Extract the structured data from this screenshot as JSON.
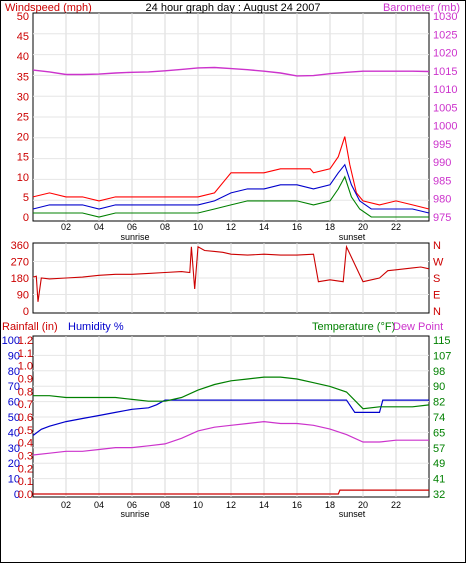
{
  "chart_data": [
    {
      "type": "line",
      "title": "24 hour graph day : August 24 2007",
      "left_axis_label": "Windspeed (mph)",
      "right_axis_label": "Barometer (mb)",
      "left_ylim": [
        0,
        50
      ],
      "left_ticks": [
        "0",
        "5",
        "10",
        "15",
        "20",
        "25",
        "30",
        "35",
        "40",
        "45",
        "50"
      ],
      "right_ylim": [
        975,
        1030
      ],
      "right_ticks": [
        "975",
        "980",
        "985",
        "990",
        "995",
        "1000",
        "1005",
        "1010",
        "1015",
        "1020",
        "1025",
        "1030"
      ],
      "x_ticks": [
        "02",
        "04",
        "06",
        "08",
        "10",
        "12",
        "14",
        "16",
        "18",
        "20",
        "22"
      ],
      "x_annotations": [
        "sunrise",
        "sunset"
      ],
      "colors": {
        "gust": "#ff0000",
        "average": "#0000cc",
        "lowest": "#008000",
        "barometer": "#cc33cc"
      },
      "series": [
        {
          "key": "barometer",
          "axis": "right",
          "x": [
            0,
            1,
            2,
            3,
            4,
            5,
            6,
            7,
            8,
            9,
            10,
            11,
            12,
            13,
            14,
            15,
            16,
            17,
            18,
            19,
            20,
            21,
            22,
            23,
            24
          ],
          "y": [
            1015.2,
            1014.7,
            1014.0,
            1014.0,
            1014.1,
            1014.4,
            1014.6,
            1014.7,
            1015.0,
            1015.4,
            1015.8,
            1015.9,
            1015.6,
            1015.3,
            1014.9,
            1014.4,
            1013.6,
            1013.7,
            1014.2,
            1014.6,
            1014.9,
            1014.9,
            1014.9,
            1014.9,
            1014.8
          ]
        },
        {
          "key": "gust",
          "axis": "left",
          "x": [
            0,
            1,
            2,
            3,
            4,
            5,
            6,
            7,
            8,
            9,
            10,
            11,
            11.6,
            12,
            13,
            14,
            15,
            16,
            16.8,
            17,
            18,
            18.5,
            18.9,
            19.2,
            19.6,
            20,
            21,
            22,
            23,
            24
          ],
          "y": [
            5,
            6,
            5,
            5,
            4,
            5,
            5,
            5,
            5,
            5,
            5,
            6,
            9,
            11,
            11,
            11,
            12,
            12,
            12,
            11,
            12,
            15,
            20,
            13,
            6,
            4,
            3,
            4,
            3,
            2
          ]
        },
        {
          "key": "average",
          "axis": "left",
          "x": [
            0,
            1,
            2,
            3,
            4,
            5,
            6,
            7,
            8,
            9,
            10,
            11,
            12,
            13,
            14,
            15,
            16,
            17,
            18,
            18.5,
            18.9,
            19.3,
            19.8,
            20.5,
            21,
            22,
            23,
            24
          ],
          "y": [
            2,
            3,
            3,
            3,
            2,
            3,
            3,
            3,
            3,
            3,
            3,
            4,
            6,
            7,
            7,
            8,
            8,
            7,
            8,
            11,
            13,
            8,
            4,
            2,
            2,
            2,
            2,
            1
          ]
        },
        {
          "key": "lowest",
          "axis": "left",
          "x": [
            0,
            1,
            2,
            3,
            4,
            5,
            6,
            7,
            8,
            9,
            10,
            11,
            12,
            13,
            14,
            15,
            16,
            17,
            18,
            18.5,
            18.9,
            19.3,
            19.8,
            20.5,
            21,
            22,
            23,
            24
          ],
          "y": [
            1,
            1,
            1,
            1,
            0,
            1,
            1,
            1,
            1,
            1,
            1,
            2,
            3,
            4,
            4,
            4,
            4,
            3,
            4,
            7,
            10,
            5,
            2,
            0,
            0,
            0,
            0,
            0
          ]
        }
      ]
    },
    {
      "type": "line",
      "left_ylim": [
        0,
        360
      ],
      "left_ticks": [
        "0",
        "90",
        "180",
        "270",
        "360"
      ],
      "right_ticks": [
        "N",
        "E",
        "S",
        "W",
        "N"
      ],
      "series": [
        {
          "key": "direction",
          "color": "#cc0000",
          "x": [
            0,
            0.2,
            0.3,
            0.5,
            1,
            2,
            3,
            4,
            5,
            6,
            7,
            8,
            9,
            9.5,
            9.6,
            9.8,
            10,
            10.4,
            11,
            11.5,
            12,
            13,
            14,
            15,
            16,
            17,
            17.3,
            18,
            18.8,
            19,
            20,
            21,
            21.5,
            22,
            23,
            23.5,
            24
          ],
          "y": [
            185,
            190,
            50,
            180,
            175,
            180,
            185,
            195,
            200,
            200,
            205,
            210,
            215,
            210,
            350,
            120,
            350,
            330,
            325,
            320,
            310,
            305,
            310,
            305,
            305,
            310,
            160,
            170,
            160,
            350,
            160,
            180,
            220,
            225,
            235,
            240,
            230
          ]
        }
      ]
    },
    {
      "type": "line",
      "labels": [
        "Rainfall (in)",
        "Humidity %",
        "Temperature (°F)",
        "Dew Point"
      ],
      "left_ticks_humidity": [
        "0",
        "10",
        "20",
        "30",
        "40",
        "50",
        "60",
        "70",
        "80",
        "90",
        "100"
      ],
      "left_ticks_rain": [
        "0.0",
        "0.1",
        "0.2",
        "0.3",
        "0.4",
        "0.5",
        "0.6",
        "0.7",
        "0.8",
        "0.9",
        "1.0",
        "1.1",
        "1.2"
      ],
      "right_ticks": [
        "32",
        "41",
        "49",
        "57",
        "65",
        "74",
        "82",
        "90",
        "98",
        "107",
        "115"
      ],
      "rain_ylim": [
        0,
        1.2
      ],
      "temp_ylim": [
        32,
        115
      ],
      "series": [
        {
          "key": "rainfall",
          "color": "#cc0000",
          "x": [
            0,
            18.5,
            18.6,
            24
          ],
          "y": [
            0.0,
            0.0,
            0.03,
            0.03
          ]
        },
        {
          "key": "humidity",
          "color": "#0000cc",
          "x": [
            0,
            0.5,
            1,
            2,
            3,
            4,
            5,
            6,
            7,
            7.5,
            8,
            9,
            10,
            11,
            12,
            13,
            14,
            15,
            16,
            17,
            18,
            19,
            19.5,
            20,
            20.5,
            21,
            21.2,
            22,
            23,
            24
          ],
          "y": [
            38,
            42,
            44,
            47,
            49,
            51,
            53,
            55,
            56,
            58,
            61,
            61,
            61,
            61,
            61,
            61,
            61,
            61,
            61,
            61,
            61,
            61,
            53,
            53,
            53,
            53,
            61,
            61,
            61,
            61
          ]
        },
        {
          "key": "temperature",
          "color": "#008000",
          "x": [
            0,
            1,
            2,
            3,
            4,
            5,
            6,
            7,
            8,
            9,
            10,
            11,
            12,
            13,
            14,
            15,
            16,
            17,
            18,
            19,
            20,
            21,
            22,
            23,
            24
          ],
          "y": [
            85,
            85,
            84,
            84,
            84,
            84,
            83,
            82,
            82,
            84,
            88,
            91,
            93,
            94,
            95,
            95,
            94,
            92,
            90,
            87,
            78,
            79,
            79,
            79,
            80
          ]
        },
        {
          "key": "dewpoint",
          "color": "#cc33cc",
          "x": [
            0,
            1,
            2,
            3,
            4,
            5,
            6,
            7,
            8,
            9,
            10,
            11,
            12,
            13,
            14,
            15,
            16,
            17,
            18,
            19,
            20,
            21,
            22,
            23,
            24
          ],
          "y": [
            53,
            54,
            55,
            55,
            56,
            57,
            57,
            58,
            59,
            62,
            66,
            68,
            69,
            70,
            71,
            70,
            70,
            69,
            67,
            64,
            60,
            60,
            61,
            61,
            61
          ]
        }
      ]
    }
  ]
}
